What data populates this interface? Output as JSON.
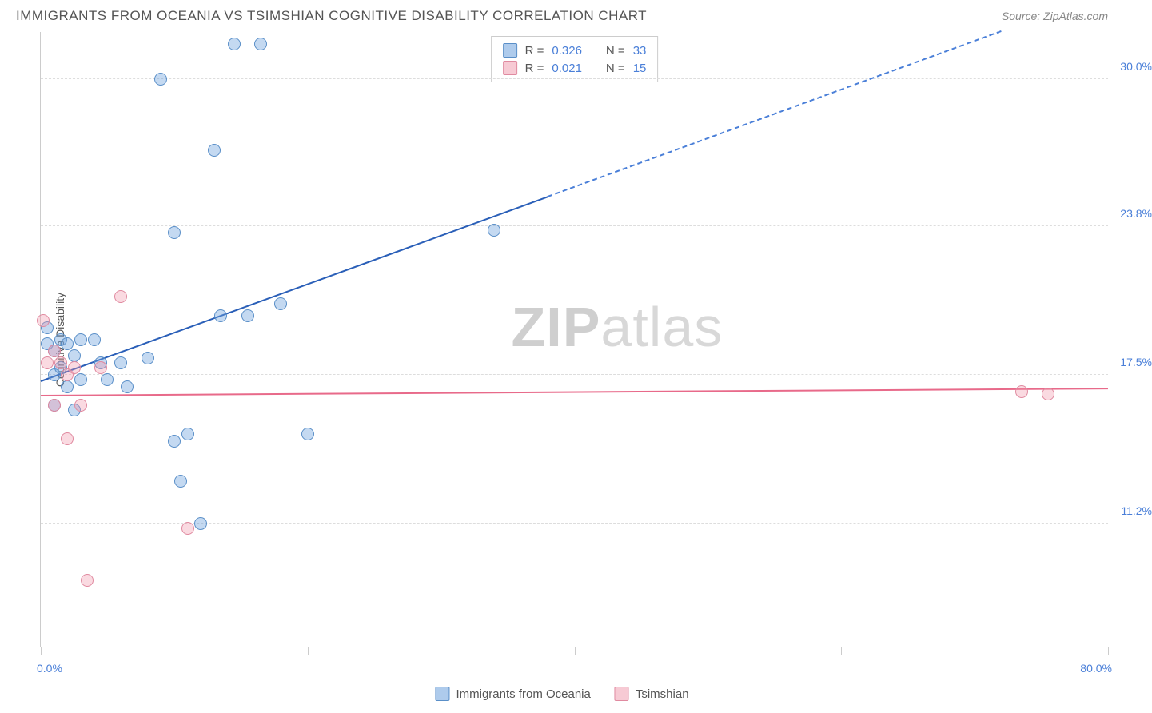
{
  "header": {
    "title": "IMMIGRANTS FROM OCEANIA VS TSIMSHIAN COGNITIVE DISABILITY CORRELATION CHART",
    "source_prefix": "Source: ",
    "source": "ZipAtlas.com"
  },
  "chart": {
    "type": "scatter",
    "ylabel": "Cognitive Disability",
    "xlim": [
      0,
      80
    ],
    "ylim": [
      6,
      32
    ],
    "background_color": "#ffffff",
    "grid_color": "#dddddd",
    "axis_color": "#cccccc",
    "yticks": [
      {
        "value": 30.0,
        "label": "30.0%"
      },
      {
        "value": 23.8,
        "label": "23.8%"
      },
      {
        "value": 17.5,
        "label": "17.5%"
      },
      {
        "value": 11.2,
        "label": "11.2%"
      }
    ],
    "xticks": [
      0,
      20,
      40,
      60,
      80
    ],
    "xtick_labels": {
      "min": "0.0%",
      "max": "80.0%"
    },
    "marker_size": 16,
    "series": [
      {
        "name": "Immigrants from Oceania",
        "color_fill": "rgba(108,160,220,0.4)",
        "color_stroke": "#5a8fc8",
        "trend_color": "#2a5fb8",
        "R": "0.326",
        "N": "33",
        "trend": {
          "x1": 0,
          "y1": 17.2,
          "x2_solid": 38,
          "y2_solid": 25.0,
          "x2": 72,
          "y2": 32.0
        },
        "points": [
          [
            0.5,
            19.5
          ],
          [
            0.5,
            18.8
          ],
          [
            1.0,
            18.5
          ],
          [
            1.0,
            17.5
          ],
          [
            1.5,
            19.0
          ],
          [
            1.5,
            17.8
          ],
          [
            2.0,
            18.8
          ],
          [
            2.0,
            17.0
          ],
          [
            2.5,
            18.3
          ],
          [
            3.0,
            19.0
          ],
          [
            3.0,
            17.3
          ],
          [
            4.0,
            19.0
          ],
          [
            4.5,
            18.0
          ],
          [
            5.0,
            17.3
          ],
          [
            6.0,
            18.0
          ],
          [
            8.0,
            18.2
          ],
          [
            9.0,
            30.0
          ],
          [
            10.0,
            23.5
          ],
          [
            10.0,
            14.7
          ],
          [
            10.5,
            13.0
          ],
          [
            11.0,
            15.0
          ],
          [
            12.0,
            11.2
          ],
          [
            13.0,
            27.0
          ],
          [
            13.5,
            20.0
          ],
          [
            14.5,
            31.5
          ],
          [
            15.5,
            20.0
          ],
          [
            16.5,
            31.5
          ],
          [
            18.0,
            20.5
          ],
          [
            20.0,
            15.0
          ],
          [
            34.0,
            23.6
          ],
          [
            1.0,
            16.2
          ],
          [
            2.5,
            16.0
          ],
          [
            6.5,
            17.0
          ]
        ]
      },
      {
        "name": "Tsimshian",
        "color_fill": "rgba(240,150,170,0.35)",
        "color_stroke": "#e08aa0",
        "trend_color": "#e86a8a",
        "R": "0.021",
        "N": "15",
        "trend": {
          "x1": 0,
          "y1": 16.6,
          "x2": 80,
          "y2": 16.9
        },
        "points": [
          [
            0.2,
            19.8
          ],
          [
            0.5,
            18.0
          ],
          [
            1.0,
            18.5
          ],
          [
            1.0,
            16.2
          ],
          [
            1.5,
            18.0
          ],
          [
            2.0,
            14.8
          ],
          [
            2.5,
            17.8
          ],
          [
            3.0,
            16.2
          ],
          [
            3.5,
            8.8
          ],
          [
            4.5,
            17.8
          ],
          [
            6.0,
            20.8
          ],
          [
            11.0,
            11.0
          ],
          [
            73.5,
            16.8
          ],
          [
            75.5,
            16.7
          ],
          [
            2.0,
            17.5
          ]
        ]
      }
    ],
    "watermark": {
      "bold": "ZIP",
      "rest": "atlas"
    }
  },
  "legend_box": {
    "rows": [
      {
        "swatch": "blue",
        "r_label": "R =",
        "r_val": "0.326",
        "n_label": "N =",
        "n_val": "33"
      },
      {
        "swatch": "pink",
        "r_label": "R =",
        "r_val": "0.021",
        "n_label": "N =",
        "n_val": "15"
      }
    ]
  },
  "bottom_legend": [
    {
      "swatch": "blue",
      "label": "Immigrants from Oceania"
    },
    {
      "swatch": "pink",
      "label": "Tsimshian"
    }
  ]
}
